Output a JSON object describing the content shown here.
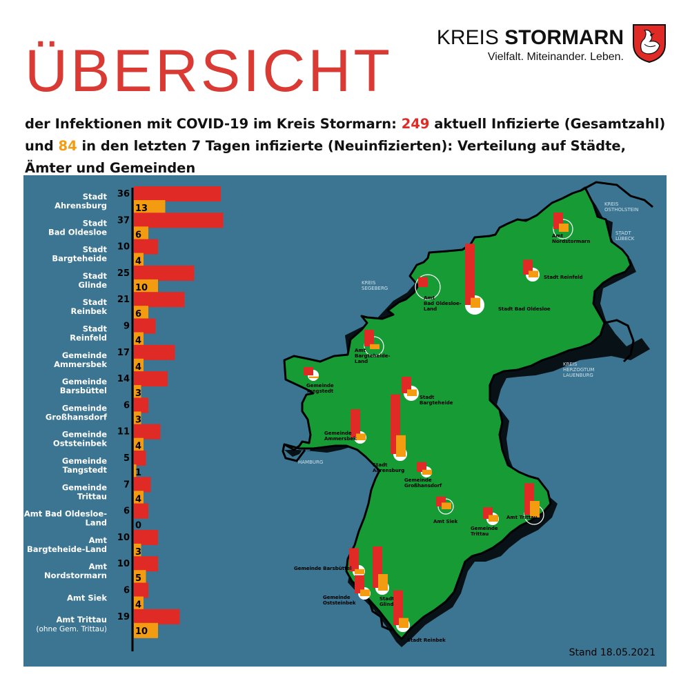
{
  "header": {
    "title": "ÜBERSICHT",
    "subtitle_part1": "der Infektionen mit COVID-19 im Kreis Stormarn: ",
    "total_infected": "249",
    "subtitle_part2": " aktuell Infizierte (Gesamtzahl) und ",
    "new_infected": "84",
    "subtitle_part3": " in den letzten 7 Tagen infizierte (Neuinfizierten): Verteilung auf Städte, Ämter und Gemeinden"
  },
  "logo": {
    "name_light": "KREIS ",
    "name_bold": "STORMARN",
    "tagline": "Vielfalt. Miteinander. Leben.",
    "icon": "coat-of-arms-swan-icon"
  },
  "footer": {
    "stand": "Stand 18.05.2021"
  },
  "colors": {
    "panel": "#3b7592",
    "total": "#e02a26",
    "new": "#f39c12",
    "map_fill": "#169b35",
    "title": "#d93a33"
  },
  "chart_data": {
    "type": "bar",
    "orientation": "horizontal",
    "categories": [
      [
        "Stadt",
        "Ahrensburg"
      ],
      [
        "Stadt",
        "Bad Oldesloe"
      ],
      [
        "Stadt",
        "Bargteheide"
      ],
      [
        "Stadt",
        "Glinde"
      ],
      [
        "Stadt",
        "Reinbek"
      ],
      [
        "Stadt",
        "Reinfeld"
      ],
      [
        "Gemeinde",
        "Ammersbek"
      ],
      [
        "Gemeinde",
        "Barsbüttel"
      ],
      [
        "Gemeinde",
        "Großhansdorf"
      ],
      [
        "Gemeinde",
        "Oststeinbek"
      ],
      [
        "Gemeinde",
        "Tangstedt"
      ],
      [
        "Gemeinde",
        "Trittau"
      ],
      [
        "Amt Bad Oldesloe-",
        "Land"
      ],
      [
        "Amt",
        "Bargteheide-Land"
      ],
      [
        "Amt",
        "Nordstormarn"
      ],
      [
        "Amt Siek"
      ],
      [
        "Amt Trittau",
        "(ohne Gem. Trittau)"
      ]
    ],
    "series": [
      {
        "values": [
          36,
          37,
          10,
          25,
          21,
          9,
          17,
          14,
          6,
          11,
          5,
          7,
          6,
          10,
          10,
          6,
          19
        ]
      },
      {
        "values": [
          13,
          6,
          4,
          10,
          6,
          4,
          4,
          3,
          3,
          4,
          1,
          4,
          0,
          3,
          5,
          4,
          10
        ]
      }
    ]
  },
  "map": {
    "neighbors": [
      [
        "KREIS",
        "OSTHOLSTEIN"
      ],
      [
        "STADT",
        "LÜBECK"
      ],
      [
        "KREIS",
        "SEGEBERG"
      ],
      [
        "KREIS",
        "HERZOGTUM",
        "LAUENBURG"
      ],
      [
        "HAMBURG"
      ]
    ],
    "places": [
      {
        "label": [
          "Amt",
          "Nordstormarn"
        ],
        "total": 10,
        "new": 5
      },
      {
        "label": [
          "Stadt Reinfeld"
        ],
        "total": 9,
        "new": 4
      },
      {
        "label": [
          "Amt",
          "Bad Oldesloe-",
          "Land"
        ],
        "total": 6,
        "new": 0
      },
      {
        "label": [
          "Stadt Bad Oldesloe"
        ],
        "total": 37,
        "new": 6
      },
      {
        "label": [
          "Amt",
          "Bargteheide-",
          "Land"
        ],
        "total": 10,
        "new": 3
      },
      {
        "label": [
          "Gemeinde",
          "Tangstedt"
        ],
        "total": 5,
        "new": 1
      },
      {
        "label": [
          "Stadt",
          "Bargteheide"
        ],
        "total": 10,
        "new": 4
      },
      {
        "label": [
          "Gemeinde",
          "Ammersbek"
        ],
        "total": 17,
        "new": 4
      },
      {
        "label": [
          "Stadt",
          "Ahrensburg"
        ],
        "total": 36,
        "new": 13
      },
      {
        "label": [
          "Gemeinde",
          "Großhansdorf"
        ],
        "total": 6,
        "new": 3
      },
      {
        "label": [
          "Amt Trittau"
        ],
        "total": 19,
        "new": 10
      },
      {
        "label": [
          "Amt Siek"
        ],
        "total": 6,
        "new": 4
      },
      {
        "label": [
          "Gemeinde",
          "Trittau"
        ],
        "total": 7,
        "new": 4
      },
      {
        "label": [
          "Gemeinde Barsbüttel"
        ],
        "total": 14,
        "new": 3
      },
      {
        "label": [
          "Gemeinde",
          "Oststeinbek"
        ],
        "total": 11,
        "new": 4
      },
      {
        "label": [
          "Stadt",
          "Glinde"
        ],
        "total": 25,
        "new": 10
      },
      {
        "label": [
          "Stadt Reinbek"
        ],
        "total": 21,
        "new": 6
      }
    ]
  }
}
